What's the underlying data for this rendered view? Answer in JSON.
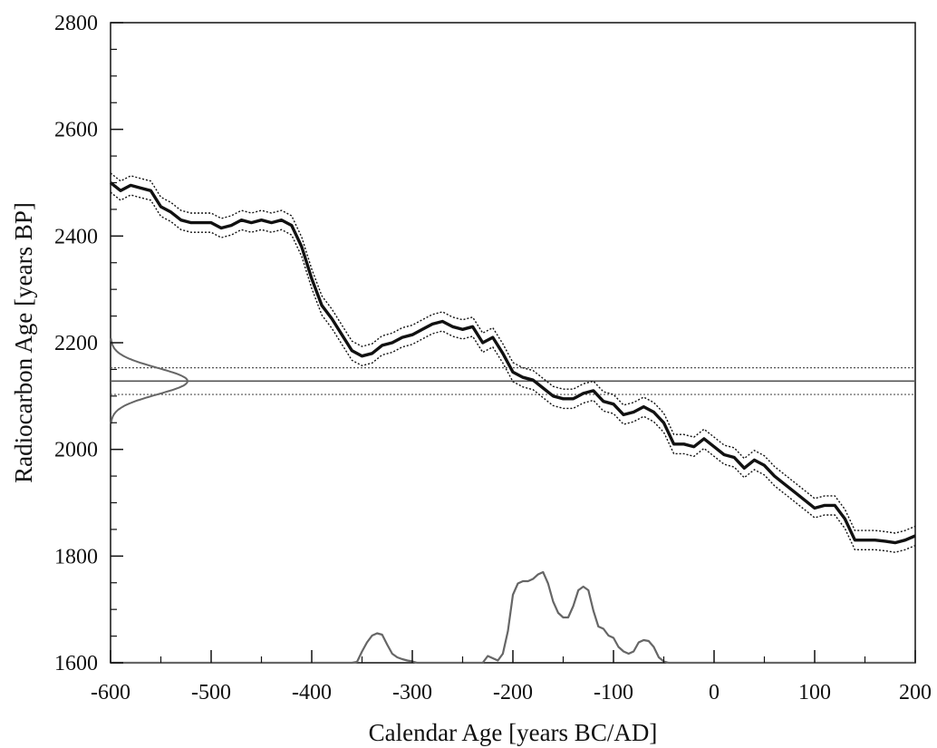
{
  "chart_data": {
    "type": "line",
    "xlabel": "Calendar Age [years BC/AD]",
    "ylabel": "Radiocarbon Age [years BP]",
    "xlim": [
      -600,
      200
    ],
    "ylim": [
      1600,
      2800
    ],
    "x_ticks": [
      -600,
      -500,
      -400,
      -300,
      -200,
      -100,
      0,
      100,
      200
    ],
    "y_ticks": [
      1600,
      1800,
      2000,
      2200,
      2400,
      2600,
      2800
    ],
    "grid": false,
    "calibration_curve": {
      "x": [
        -600,
        -590,
        -580,
        -570,
        -560,
        -550,
        -540,
        -530,
        -520,
        -510,
        -500,
        -490,
        -480,
        -470,
        -460,
        -450,
        -440,
        -430,
        -420,
        -410,
        -400,
        -390,
        -380,
        -370,
        -360,
        -350,
        -340,
        -330,
        -320,
        -310,
        -300,
        -290,
        -280,
        -270,
        -260,
        -250,
        -240,
        -230,
        -220,
        -210,
        -200,
        -190,
        -180,
        -170,
        -160,
        -150,
        -140,
        -130,
        -120,
        -110,
        -100,
        -90,
        -80,
        -70,
        -60,
        -50,
        -40,
        -30,
        -20,
        -10,
        0,
        10,
        20,
        30,
        40,
        50,
        60,
        70,
        80,
        90,
        100,
        110,
        120,
        130,
        140,
        150,
        160,
        170,
        180,
        190,
        200
      ],
      "y": [
        2500,
        2485,
        2495,
        2490,
        2485,
        2455,
        2445,
        2430,
        2425,
        2425,
        2425,
        2415,
        2420,
        2430,
        2425,
        2430,
        2425,
        2430,
        2420,
        2380,
        2320,
        2270,
        2245,
        2215,
        2185,
        2175,
        2180,
        2195,
        2200,
        2210,
        2215,
        2225,
        2235,
        2240,
        2230,
        2225,
        2230,
        2200,
        2210,
        2180,
        2145,
        2135,
        2130,
        2115,
        2100,
        2095,
        2095,
        2105,
        2110,
        2090,
        2085,
        2065,
        2070,
        2080,
        2070,
        2050,
        2010,
        2010,
        2005,
        2020,
        2005,
        1990,
        1985,
        1965,
        1980,
        1970,
        1950,
        1935,
        1920,
        1905,
        1890,
        1895,
        1895,
        1870,
        1830,
        1830,
        1830,
        1828,
        1825,
        1830,
        1838
      ],
      "uncertainty": 18
    },
    "measured_date": {
      "mean": 2128,
      "sigma": 25
    },
    "calibrated_distribution": {
      "x": [
        -360,
        -355,
        -350,
        -345,
        -340,
        -335,
        -330,
        -325,
        -320,
        -315,
        -310,
        -305,
        -300,
        -295,
        -290,
        -230,
        -225,
        -220,
        -215,
        -210,
        -205,
        -200,
        -195,
        -190,
        -185,
        -180,
        -175,
        -170,
        -165,
        -160,
        -155,
        -150,
        -145,
        -140,
        -135,
        -130,
        -125,
        -120,
        -115,
        -110,
        -105,
        -100,
        -95,
        -90,
        -85,
        -80,
        -75,
        -70,
        -65,
        -60,
        -55,
        -50,
        -45,
        -40
      ],
      "y": [
        0,
        2,
        25,
        45,
        60,
        65,
        62,
        40,
        20,
        12,
        8,
        5,
        3,
        0,
        0,
        0,
        15,
        10,
        5,
        20,
        70,
        150,
        175,
        180,
        180,
        185,
        195,
        200,
        175,
        135,
        110,
        100,
        100,
        125,
        160,
        168,
        160,
        115,
        80,
        75,
        60,
        55,
        35,
        25,
        20,
        25,
        45,
        50,
        48,
        35,
        12,
        3,
        0,
        0
      ]
    },
    "distribution_scale_radiocarbon_years": 0.85
  }
}
